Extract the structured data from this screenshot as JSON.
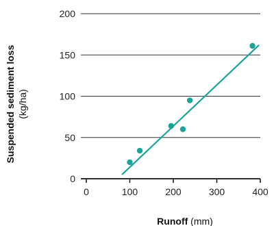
{
  "chart_data": {
    "type": "scatter",
    "xlabel": "Runoff",
    "xunit": "(mm)",
    "ylabel": "Suspended sediment loss",
    "yunit": "(kg/ha)",
    "xlim": [
      0,
      400
    ],
    "ylim": [
      0,
      200
    ],
    "xticks": [
      "0",
      "100",
      "200",
      "300",
      "400"
    ],
    "yticks": [
      "0",
      "50",
      "100",
      "150",
      "200"
    ],
    "grid": "horizontal",
    "points": [
      {
        "x": 100,
        "y": 20
      },
      {
        "x": 123,
        "y": 34
      },
      {
        "x": 195,
        "y": 64
      },
      {
        "x": 222,
        "y": 60
      },
      {
        "x": 238,
        "y": 95
      },
      {
        "x": 382,
        "y": 161
      }
    ],
    "trendline": {
      "x": [
        82,
        397
      ],
      "y": [
        5,
        162
      ]
    },
    "colors": {
      "points": "#1aa396",
      "trendline": "#1aa396",
      "grid": "#333333",
      "axis": "#111111"
    }
  }
}
